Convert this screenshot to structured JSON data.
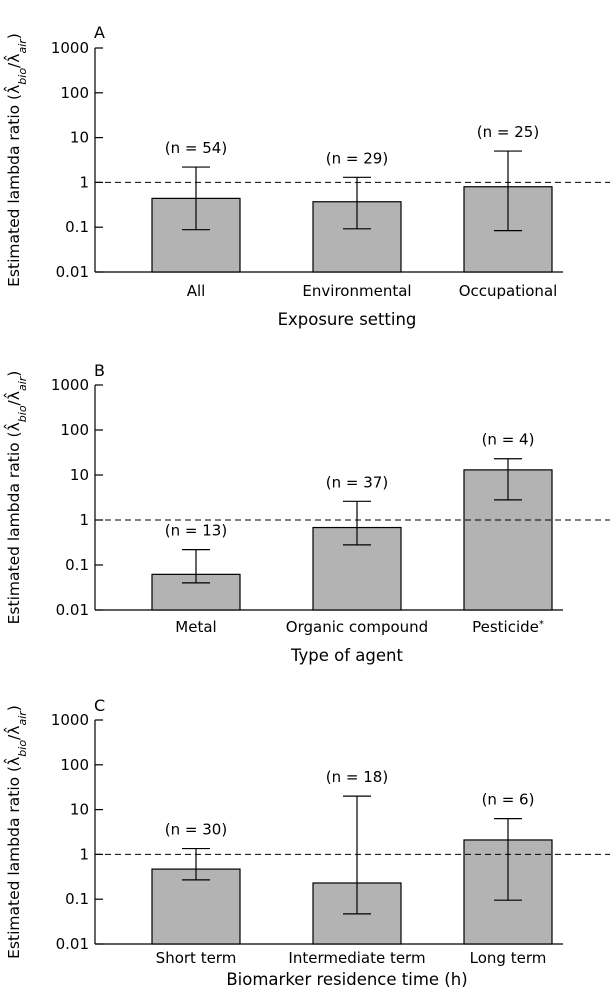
{
  "chart_data": [
    {
      "panel": "A",
      "type": "bar",
      "xlabel": "Exposure setting",
      "ylabel": "Estimated lambda ratio (λ̂bio/λ̂air)",
      "yscale": "log",
      "ylim": [
        0.01,
        1000
      ],
      "yticks": [
        {
          "value": 0.01,
          "label": "0.01"
        },
        {
          "value": 0.1,
          "label": "0.1"
        },
        {
          "value": 1,
          "label": "1"
        },
        {
          "value": 10,
          "label": "10"
        },
        {
          "value": 100,
          "label": "100"
        },
        {
          "value": 1000,
          "label": "1000"
        }
      ],
      "reference_line": 1,
      "categories": [
        "All",
        "Environmental",
        "Occupational"
      ],
      "values": [
        0.44,
        0.37,
        0.8
      ],
      "error_low": [
        0.088,
        0.092,
        0.084
      ],
      "error_high": [
        2.2,
        1.3,
        5.0
      ],
      "n_labels": [
        "(n = 54)",
        "(n = 29)",
        "(n = 25)"
      ]
    },
    {
      "panel": "B",
      "type": "bar",
      "xlabel": "Type of agent",
      "ylabel": "Estimated lambda ratio (λ̂bio/λ̂air)",
      "yscale": "log",
      "ylim": [
        0.01,
        1000
      ],
      "yticks": [
        {
          "value": 0.01,
          "label": "0.01"
        },
        {
          "value": 0.1,
          "label": "0.1"
        },
        {
          "value": 1,
          "label": "1"
        },
        {
          "value": 10,
          "label": "10"
        },
        {
          "value": 100,
          "label": "100"
        },
        {
          "value": 1000,
          "label": "1000"
        }
      ],
      "reference_line": 1,
      "categories": [
        "Metal",
        "Organic compound",
        "Pesticide*"
      ],
      "values": [
        0.062,
        0.68,
        13
      ],
      "error_low": [
        0.04,
        0.28,
        2.8
      ],
      "error_high": [
        0.22,
        2.6,
        23
      ],
      "n_labels": [
        "(n = 13)",
        "(n = 37)",
        "(n = 4)"
      ]
    },
    {
      "panel": "C",
      "type": "bar",
      "xlabel": "Biomarker residence time (h)",
      "ylabel": "Estimated lambda ratio (λ̂bio/λ̂air)",
      "yscale": "log",
      "ylim": [
        0.01,
        1000
      ],
      "yticks": [
        {
          "value": 0.01,
          "label": "0.01"
        },
        {
          "value": 0.1,
          "label": "0.1"
        },
        {
          "value": 1,
          "label": "1"
        },
        {
          "value": 10,
          "label": "10"
        },
        {
          "value": 100,
          "label": "100"
        },
        {
          "value": 1000,
          "label": "1000"
        }
      ],
      "reference_line": 1,
      "categories": [
        "Short term",
        "Intermediate term",
        "Long term"
      ],
      "values": [
        0.47,
        0.23,
        2.1
      ],
      "error_low": [
        0.27,
        0.047,
        0.095
      ],
      "error_high": [
        1.35,
        20,
        6.3
      ],
      "n_labels": [
        "(n = 30)",
        "(n = 18)",
        "(n = 6)"
      ]
    }
  ]
}
